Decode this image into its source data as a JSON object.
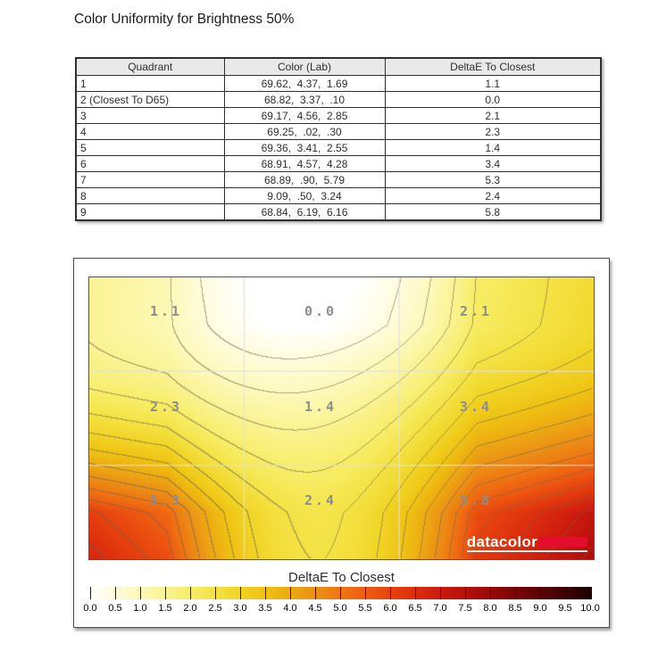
{
  "page": {
    "title": "Color Uniformity for Brightness 50%"
  },
  "table": {
    "headers": [
      "Quadrant",
      "Color (Lab)",
      "DeltaE To Closest"
    ],
    "rows": [
      {
        "quadrant": "1",
        "lab": "69.62,  4.37,  1.69",
        "delta": "1.1"
      },
      {
        "quadrant": "2 (Closest To D65)",
        "lab": "68.82,  3.37,  .10",
        "delta": "0.0"
      },
      {
        "quadrant": "3",
        "lab": "69.17,  4.56,  2.85",
        "delta": "2.1"
      },
      {
        "quadrant": "4",
        "lab": "69.25,  .02,  .30",
        "delta": "2.3"
      },
      {
        "quadrant": "5",
        "lab": "69.36,  3.41,  2.55",
        "delta": "1.4"
      },
      {
        "quadrant": "6",
        "lab": "68.91,  4.57,  4.28",
        "delta": "3.4"
      },
      {
        "quadrant": "7",
        "lab": "68.89,  .90,  5.79",
        "delta": "5.3"
      },
      {
        "quadrant": "8",
        "lab": "9.09,  .50,  3.24",
        "delta": "2.4"
      },
      {
        "quadrant": "9",
        "lab": "68.84,  6.19,  6.16",
        "delta": "5.8"
      }
    ]
  },
  "chart_data": {
    "type": "heatmap",
    "title": "DeltaE To Closest",
    "grid_rows": 3,
    "grid_cols": 3,
    "values": [
      [
        1.1,
        0.0,
        2.1
      ],
      [
        2.3,
        1.4,
        3.4
      ],
      [
        5.3,
        2.4,
        5.8
      ]
    ],
    "value_labels": [
      [
        "1.1",
        "0.0",
        "2.1"
      ],
      [
        "2.3",
        "1.4",
        "3.4"
      ],
      [
        "5.3",
        "2.4",
        "5.8"
      ]
    ],
    "contour_interval": 0.5,
    "grid_lines": "3x3 light overlay",
    "logo_text": "datacolor",
    "logo_red": "#e50d2e",
    "label_color": "#8d8d8d",
    "colorbar": {
      "label": "DeltaE To Closest",
      "min": 0.0,
      "max": 10.0,
      "tick_step": 0.5,
      "ticks": [
        "0.0",
        "0.5",
        "1.0",
        "1.5",
        "2.0",
        "2.5",
        "3.0",
        "3.5",
        "4.0",
        "4.5",
        "5.0",
        "5.5",
        "6.0",
        "6.5",
        "7.0",
        "7.5",
        "8.0",
        "8.5",
        "9.0",
        "9.5",
        "10.0"
      ],
      "stops": [
        {
          "v": 0.0,
          "c": "#ffffff"
        },
        {
          "v": 0.5,
          "c": "#fffcdd"
        },
        {
          "v": 1.0,
          "c": "#fdf9bb"
        },
        {
          "v": 1.5,
          "c": "#faf392"
        },
        {
          "v": 2.0,
          "c": "#f7ed68"
        },
        {
          "v": 2.5,
          "c": "#f4e244"
        },
        {
          "v": 3.0,
          "c": "#f1d426"
        },
        {
          "v": 3.5,
          "c": "#efc213"
        },
        {
          "v": 4.0,
          "c": "#edaa12"
        },
        {
          "v": 4.5,
          "c": "#eb9016"
        },
        {
          "v": 5.0,
          "c": "#ef7712"
        },
        {
          "v": 5.5,
          "c": "#ee5c11"
        },
        {
          "v": 6.0,
          "c": "#e7430f"
        },
        {
          "v": 6.5,
          "c": "#dc2c0e"
        },
        {
          "v": 7.0,
          "c": "#cb1a0e"
        },
        {
          "v": 7.5,
          "c": "#b5100c"
        },
        {
          "v": 8.0,
          "c": "#980909"
        },
        {
          "v": 8.5,
          "c": "#790606"
        },
        {
          "v": 9.0,
          "c": "#5a0404"
        },
        {
          "v": 9.5,
          "c": "#3b0202"
        },
        {
          "v": 10.0,
          "c": "#1a0000"
        }
      ]
    }
  }
}
